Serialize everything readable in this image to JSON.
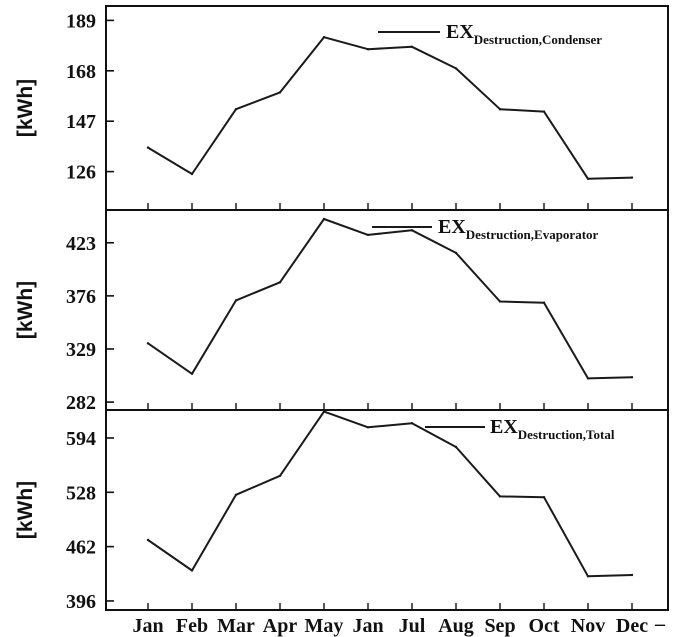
{
  "chart_data": [
    {
      "type": "line",
      "ylabel": "[kWh]",
      "yticks": [
        126,
        147,
        168,
        189
      ],
      "ylim": [
        110,
        195
      ],
      "legend": {
        "main": "EX",
        "sub": "Destruction,Condenser",
        "placement": "top-right"
      },
      "series": [
        {
          "name": "EX Destruction,Condenser",
          "values": [
            136,
            125,
            152,
            159,
            182,
            177,
            178,
            169,
            152,
            151,
            123,
            123.5
          ]
        }
      ],
      "color": "#1a1a1a"
    },
    {
      "type": "line",
      "ylabel": "[kWh]",
      "yticks": [
        282,
        329,
        376,
        423
      ],
      "ylim": [
        275,
        452
      ],
      "legend": {
        "main": "EX",
        "sub": "Destruction,Evaporator",
        "placement": "top-right"
      },
      "series": [
        {
          "name": "EX Destruction,Evaporator",
          "values": [
            334,
            307,
            372,
            388,
            444,
            430,
            434,
            414,
            371,
            370,
            303,
            304
          ]
        }
      ],
      "color": "#1a1a1a"
    },
    {
      "type": "line",
      "ylabel": "[kWh]",
      "yticks": [
        396,
        462,
        528,
        594
      ],
      "ylim": [
        385,
        628
      ],
      "legend": {
        "main": "EX",
        "sub": "Destruction,Total",
        "placement": "top-right"
      },
      "series": [
        {
          "name": "EX Destruction,Total",
          "values": [
            470,
            433,
            525,
            548,
            626,
            607,
            612,
            583,
            523,
            522,
            426,
            427.5
          ]
        }
      ],
      "color": "#1a1a1a"
    }
  ],
  "x_categories": [
    "Jan",
    "Feb",
    "Mar",
    "Apr",
    "May",
    "Jan",
    "Jul",
    "Aug",
    "Sep",
    "Oct",
    "Nov",
    "Dec"
  ],
  "x_extra_tick": "–"
}
